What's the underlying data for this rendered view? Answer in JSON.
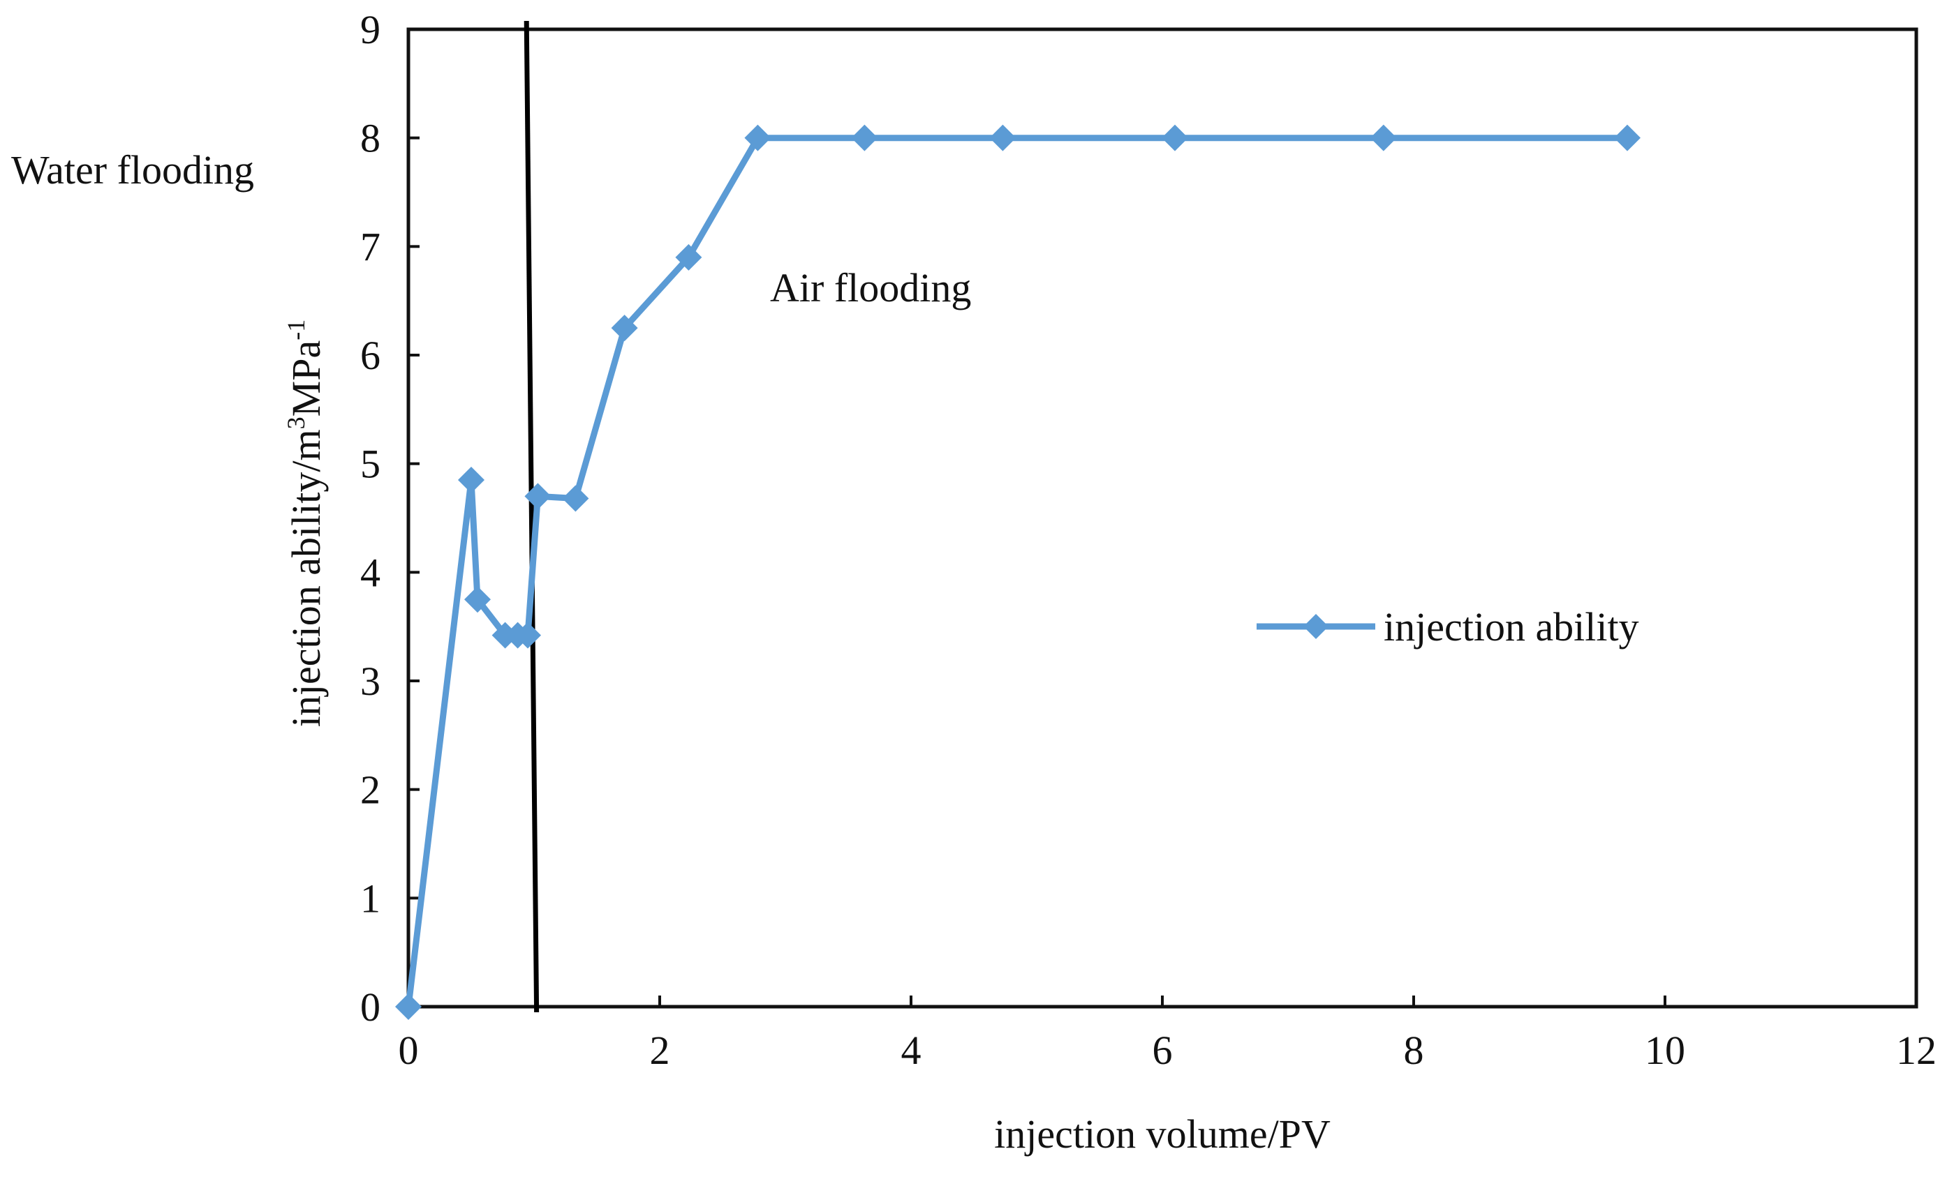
{
  "chart_data": {
    "type": "line",
    "title": "",
    "xlabel": "injection volume/PV",
    "ylabel": {
      "base": "injection ability/m",
      "sup1": "3",
      "mid": "MPa",
      "sup2": "-1"
    },
    "xlim": [
      0,
      12
    ],
    "ylim": [
      0,
      9
    ],
    "xticks": [
      0,
      2,
      4,
      6,
      8,
      10,
      12
    ],
    "yticks": [
      0,
      1,
      2,
      3,
      4,
      5,
      6,
      7,
      8,
      9
    ],
    "grid": false,
    "legend": {
      "position": "center-right",
      "entries": [
        "injection ability"
      ]
    },
    "series": [
      {
        "name": "injection ability",
        "color": "#5b9bd5",
        "marker": "diamond",
        "x": [
          0,
          0.5,
          0.55,
          0.77,
          0.87,
          0.95,
          1.03,
          1.33,
          1.72,
          2.23,
          2.78,
          3.63,
          4.73,
          6.1,
          7.76,
          9.7
        ],
        "y": [
          0,
          4.85,
          3.75,
          3.42,
          3.42,
          3.42,
          4.7,
          4.68,
          6.25,
          6.9,
          8.0,
          8.0,
          8.0,
          8.0,
          8.0,
          8.0
        ]
      }
    ],
    "annotations": [
      {
        "text": "Water flooding"
      },
      {
        "text": "Air flooding"
      }
    ],
    "divider": {
      "x_top": 0.94,
      "x_bottom": 1.02,
      "color": "#000000"
    }
  }
}
